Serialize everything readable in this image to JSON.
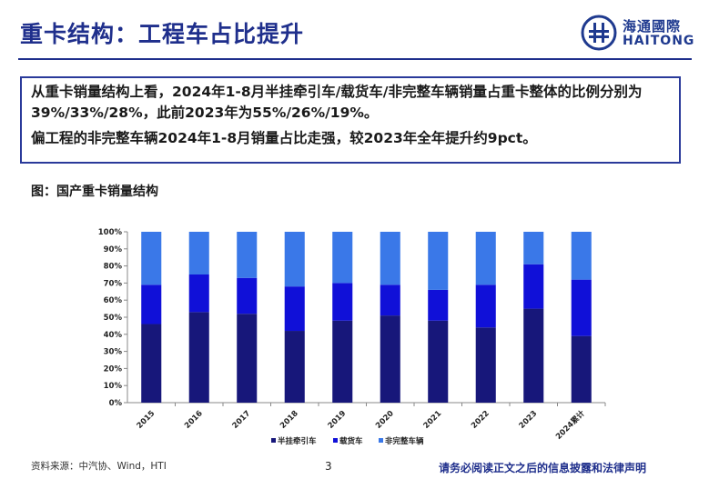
{
  "header": {
    "title": "重卡结构：工程车占比提升",
    "logo_cn": "海通國際",
    "logo_en": "HAITONG"
  },
  "summary": {
    "line1": "从重卡销量结构上看，2024年1-8月半挂牵引车/载货车/非完整车辆销量占重卡整体的比例分别为39%/33%/28%，此前2023年为55%/26%/19%。",
    "line2": "偏工程的非完整车辆2024年1-8月销量占比走强，较2023年全年提升约9pct。"
  },
  "figure_label": "图：国产重卡销量结构",
  "chart_data": {
    "type": "bar",
    "stacked": true,
    "categories": [
      "2015",
      "2016",
      "2017",
      "2018",
      "2019",
      "2020",
      "2021",
      "2022",
      "2023",
      "2024累计"
    ],
    "series": [
      {
        "name": "半挂牵引车",
        "color": "#17177a",
        "values": [
          46,
          53,
          52,
          42,
          48,
          51,
          48,
          44,
          55,
          39
        ]
      },
      {
        "name": "载货车",
        "color": "#1010d8",
        "values": [
          23,
          22,
          21,
          26,
          22,
          18,
          18,
          25,
          26,
          33
        ]
      },
      {
        "name": "非完整车辆",
        "color": "#3a78e8",
        "values": [
          31,
          25,
          27,
          32,
          30,
          31,
          34,
          31,
          19,
          28
        ]
      }
    ],
    "ylim": [
      0,
      100
    ],
    "yticks": [
      "0%",
      "10%",
      "20%",
      "30%",
      "40%",
      "50%",
      "60%",
      "70%",
      "80%",
      "90%",
      "100%"
    ],
    "legend_position": "bottom",
    "grid": false
  },
  "footer": {
    "source": "资料来源：中汽协、Wind，HTI",
    "page": "3",
    "disclaimer": "请务必阅读正文之后的信息披露和法律声明"
  }
}
